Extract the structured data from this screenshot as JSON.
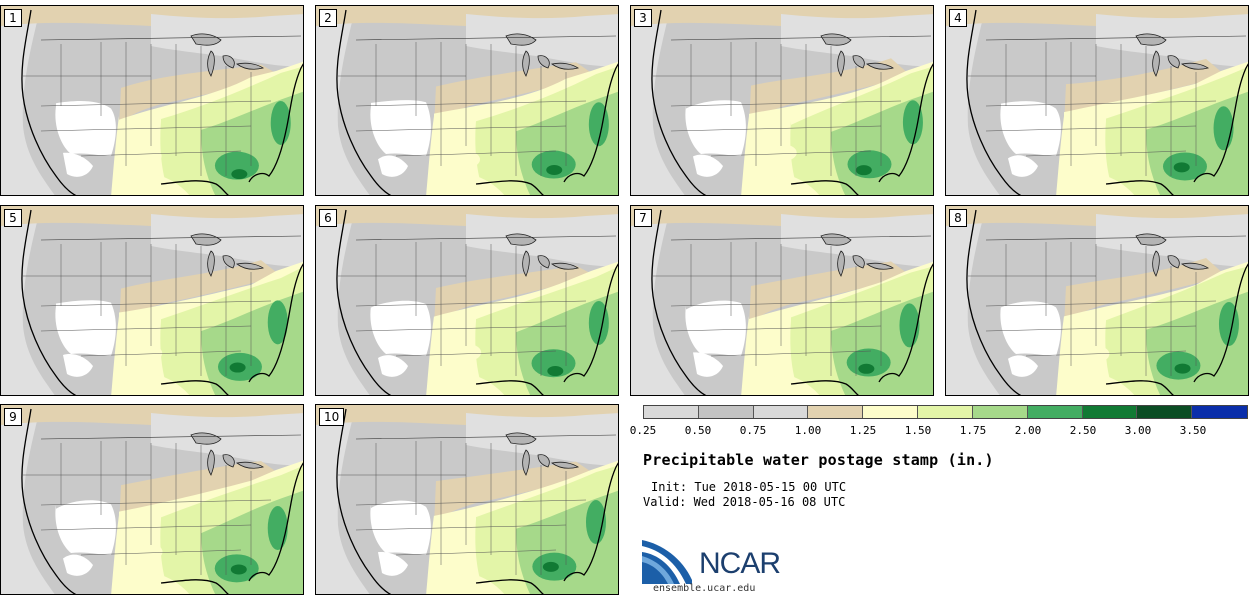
{
  "panels": [
    {
      "label": "1"
    },
    {
      "label": "2"
    },
    {
      "label": "3"
    },
    {
      "label": "4"
    },
    {
      "label": "5"
    },
    {
      "label": "6"
    },
    {
      "label": "7"
    },
    {
      "label": "8"
    },
    {
      "label": "9"
    },
    {
      "label": "10"
    }
  ],
  "colorbar": {
    "colors": [
      "#d9d9d9",
      "#c3c3c3",
      "#d9d9d9",
      "#e2d2b0",
      "#fdfdcb",
      "#e3f5a8",
      "#a6d98a",
      "#43ad62",
      "#117a34",
      "#0b4d24",
      "#0a2eaa"
    ],
    "labels": [
      "0.25",
      "0.50",
      "0.75",
      "1.00",
      "1.25",
      "1.50",
      "1.75",
      "2.00",
      "2.50",
      "3.00",
      "3.50"
    ]
  },
  "title": "Precipitable water postage stamp (in.)",
  "init": "Init: Tue 2018-05-15 00 UTC",
  "valid": "Valid: Wed 2018-05-16 08 UTC",
  "logo": {
    "text": "NCAR",
    "url": "ensemble.ucar.edu",
    "color": "#1c5fa8"
  },
  "map_colors": {
    "white": "#ffffff",
    "lightgray": "#e0e0e0",
    "gray": "#c9c9c9",
    "darkgray": "#b4b4b4",
    "tan": "#e2d2b0",
    "paleyellow": "#fdfdcb",
    "lightgreen": "#e3f5a8",
    "green": "#a6d98a",
    "midgreen": "#43ad62",
    "darkgreen": "#117a34"
  }
}
